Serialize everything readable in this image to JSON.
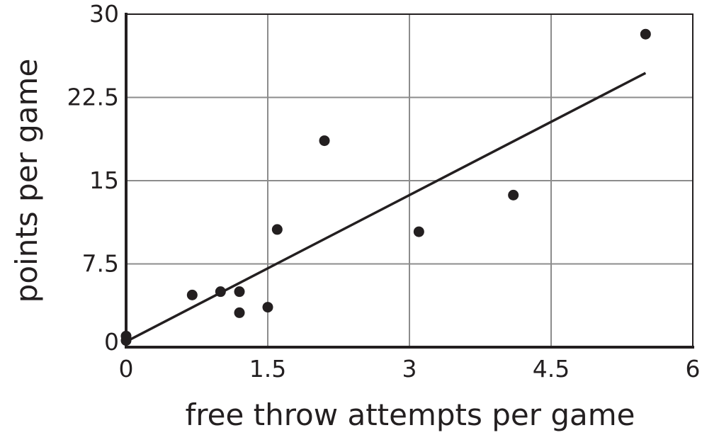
{
  "chart_data": {
    "type": "scatter",
    "title": "",
    "xlabel": "free throw attempts per game",
    "ylabel": "points per game",
    "xlim": [
      0,
      6
    ],
    "ylim": [
      0,
      30
    ],
    "grid": true,
    "x_ticks": [
      "0",
      "1.5",
      "3",
      "4.5",
      "6"
    ],
    "y_ticks": [
      "0",
      "7.5",
      "15",
      "22.5",
      "30"
    ],
    "x_tick_values": [
      0,
      1.5,
      3,
      4.5,
      6
    ],
    "y_tick_values": [
      0,
      7.5,
      15,
      22.5,
      30
    ],
    "points": [
      {
        "x": 0.0,
        "y": 0.6
      },
      {
        "x": 0.0,
        "y": 1.0
      },
      {
        "x": 0.7,
        "y": 4.7
      },
      {
        "x": 1.0,
        "y": 5.0
      },
      {
        "x": 1.2,
        "y": 5.0
      },
      {
        "x": 1.2,
        "y": 3.1
      },
      {
        "x": 1.5,
        "y": 3.6
      },
      {
        "x": 1.6,
        "y": 10.6
      },
      {
        "x": 2.1,
        "y": 18.6
      },
      {
        "x": 3.1,
        "y": 10.4
      },
      {
        "x": 4.1,
        "y": 13.7
      },
      {
        "x": 5.5,
        "y": 28.2
      }
    ],
    "fit_line": {
      "x": [
        0.0,
        5.5
      ],
      "y": [
        0.5,
        24.7
      ]
    },
    "colors": {
      "points": "#231f20",
      "line": "#231f20",
      "grid": "#8c8c8c"
    }
  }
}
